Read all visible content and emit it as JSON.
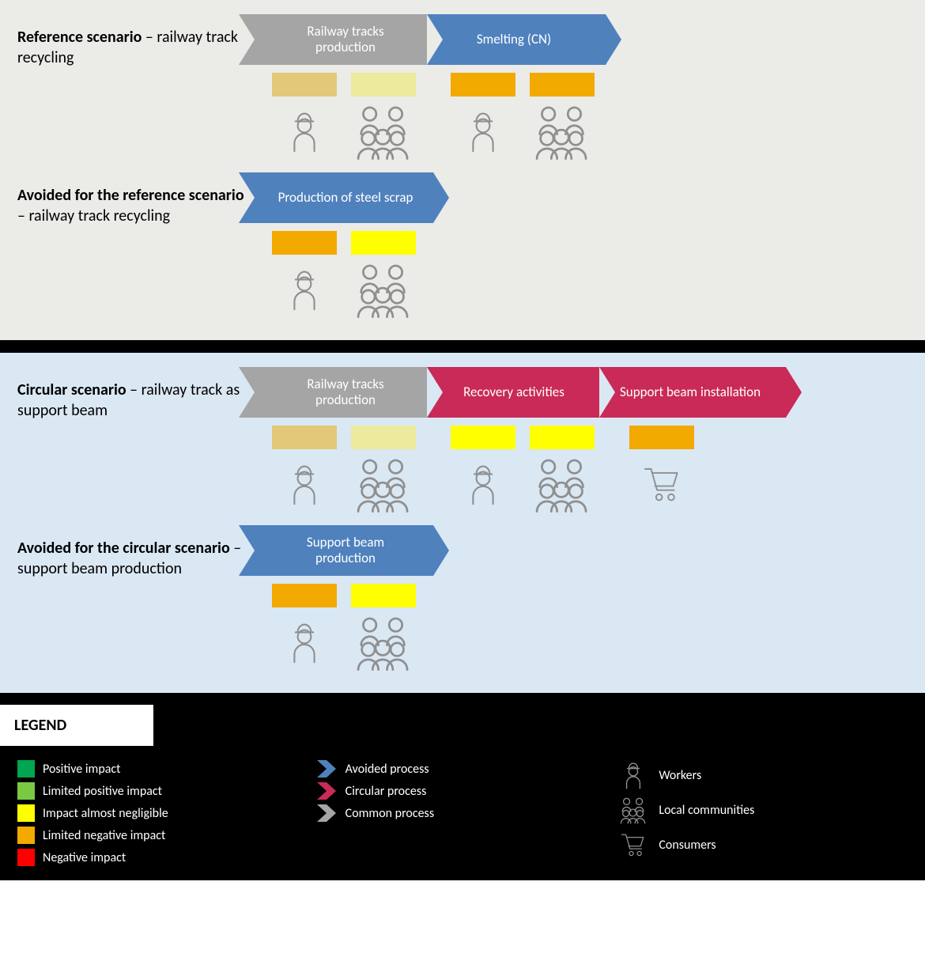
{
  "colors": {
    "panel_grey": "#ebebe8",
    "panel_blue": "#dae8f4",
    "arrow_grey": "#a5a5a5",
    "arrow_blue": "#4f81bd",
    "arrow_red": "#c92a57",
    "icon_stroke": "#8f8f8f",
    "sw_tan": "#e2c878",
    "sw_paleyellow": "#ecea9d",
    "sw_orange": "#f2a900",
    "sw_yellow": "#ffff00",
    "sw_green": "#00a651",
    "sw_lightgreen": "#7ac943",
    "sw_red": "#ff0000"
  },
  "arrow_widths": {
    "std": 226,
    "wide": 236
  },
  "sections": {
    "ref": {
      "label_bold": "Reference scenario",
      "label_rest": " – railway track recycling",
      "arrows": [
        {
          "text": "Railway tracks production",
          "color": "arrow_grey"
        },
        {
          "text": "Smelting (CN)",
          "color": "arrow_blue"
        }
      ],
      "swatch_pairs": [
        [
          "sw_tan",
          "sw_paleyellow"
        ],
        [
          "sw_orange",
          "sw_orange"
        ]
      ],
      "icon_pairs": [
        [
          "worker",
          "group"
        ],
        [
          "worker",
          "group"
        ]
      ]
    },
    "ref_avoided": {
      "label_bold": "Avoided for the reference scenario",
      "label_rest": " – railway track recycling",
      "arrows": [
        {
          "text": "Production of steel scrap",
          "color": "arrow_blue"
        }
      ],
      "swatch_pairs": [
        [
          "sw_orange",
          "sw_yellow"
        ]
      ],
      "icon_pairs": [
        [
          "worker",
          "group"
        ]
      ]
    },
    "circ": {
      "label_bold": "Circular scenario",
      "label_rest": " – railway track as support beam",
      "arrows": [
        {
          "text": "Railway tracks production",
          "color": "arrow_grey"
        },
        {
          "text": "Recovery activities",
          "color": "arrow_red"
        },
        {
          "text": "Support beam installation",
          "color": "arrow_red"
        }
      ],
      "swatch_pairs": [
        [
          "sw_tan",
          "sw_paleyellow"
        ],
        [
          "sw_yellow",
          "sw_yellow"
        ],
        [
          "sw_orange"
        ]
      ],
      "icon_pairs": [
        [
          "worker",
          "group"
        ],
        [
          "worker",
          "group"
        ],
        [
          "cart"
        ]
      ]
    },
    "circ_avoided": {
      "label_bold": "Avoided for the circular scenario",
      "label_rest": " – support beam production",
      "arrows": [
        {
          "text": "Support beam production",
          "color": "arrow_blue"
        }
      ],
      "swatch_pairs": [
        [
          "sw_orange",
          "sw_yellow"
        ]
      ],
      "icon_pairs": [
        [
          "worker",
          "group"
        ]
      ]
    }
  },
  "legend": {
    "title": "LEGEND",
    "col1": [
      {
        "color": "sw_green",
        "label": "Positive impact"
      },
      {
        "color": "sw_lightgreen",
        "label": "Limited positive impact"
      },
      {
        "color": "sw_yellow",
        "label": "Impact almost negligible"
      },
      {
        "color": "sw_orange",
        "label": "Limited negative impact"
      },
      {
        "color": "sw_red",
        "label": "Negative impact"
      }
    ],
    "col2": [
      {
        "chev": "arrow_blue",
        "label": "Avoided process"
      },
      {
        "chev": "arrow_red",
        "label": "Circular process"
      },
      {
        "chev": "arrow_grey",
        "label": "Common process"
      }
    ],
    "col3": [
      {
        "icon": "worker",
        "label": "Workers"
      },
      {
        "icon": "group",
        "label": "Local communities"
      },
      {
        "icon": "cart",
        "label": "Consumers"
      }
    ]
  }
}
